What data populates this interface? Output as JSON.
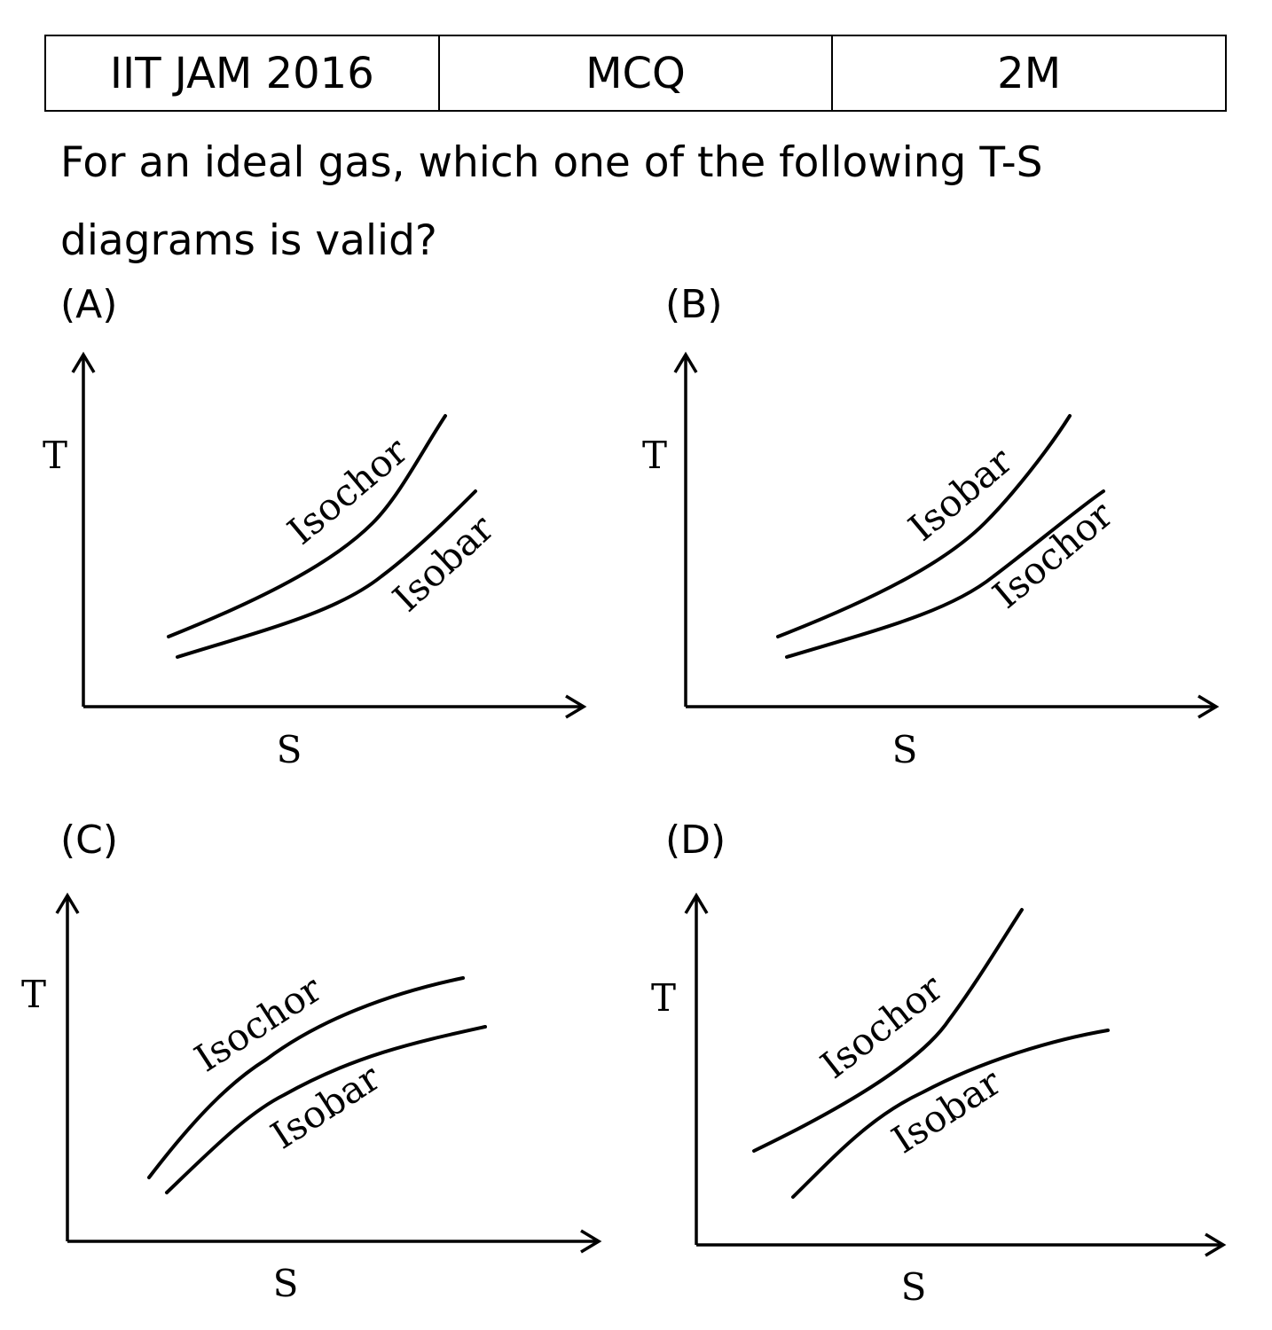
{
  "header": {
    "exam": "IIT JAM 2016",
    "type": "MCQ",
    "marks": "2M"
  },
  "question": {
    "text": "For an ideal gas, which one of the following T-S diagrams is valid?"
  },
  "options": [
    {
      "label": "(A)",
      "y_axis": "T",
      "x_axis": "S",
      "upper_curve": "Isochor",
      "lower_curve": "Isobar"
    },
    {
      "label": "(B)",
      "y_axis": "T",
      "x_axis": "S",
      "upper_curve": "Isobar",
      "lower_curve": "Isochor"
    },
    {
      "label": "(C)",
      "y_axis": "T",
      "x_axis": "S",
      "upper_curve": "Isochor",
      "lower_curve": "Isobar"
    },
    {
      "label": "(D)",
      "y_axis": "T",
      "x_axis": "S",
      "upper_curve": "Isochor",
      "lower_curve": "Isobar"
    }
  ]
}
